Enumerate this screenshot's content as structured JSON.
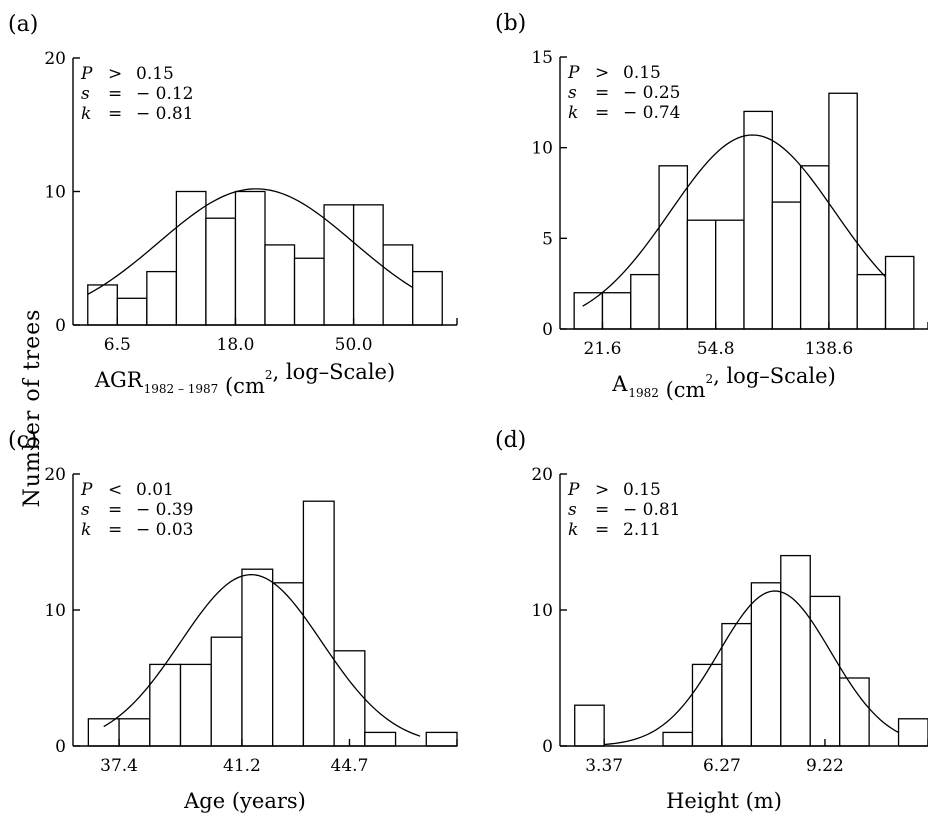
{
  "figure": {
    "ylabel": "Number of trees"
  },
  "chart_data": [
    {
      "type": "bar",
      "panel": "(a)",
      "xlabel_main": "AGR",
      "xlabel_sub": "1982 – 1987",
      "xlabel_rest": " (cm",
      "xlabel_sup": "2",
      "xlabel_tail": ", log–Scale)",
      "xlim": [
        0.0,
        13.0
      ],
      "ylim": [
        0,
        20
      ],
      "y_ticks": [
        0,
        10,
        20
      ],
      "x_ticks": [
        {
          "pos": 1.5,
          "label": "6.5"
        },
        {
          "pos": 5.5,
          "label": "18.0"
        },
        {
          "pos": 9.5,
          "label": "50.0"
        }
      ],
      "bins": [
        0.5,
        1.5,
        2.5,
        3.5,
        4.5,
        5.5,
        6.5,
        7.5,
        8.5,
        9.5,
        10.5,
        11.5
      ],
      "values": [
        3,
        2,
        4,
        10,
        8,
        10,
        6,
        5,
        9,
        9,
        6,
        4
      ],
      "bin_width": 1.0,
      "fit_curve": {
        "type": "normal",
        "mean": 6.2,
        "sd": 3.3,
        "peak": 10.2,
        "x_range": [
          0.5,
          11.5
        ]
      },
      "stats": {
        "p_sym": "P",
        "p_op": ">",
        "p_val": "0.15",
        "s_sym": "s",
        "s_eq": "=",
        "s_val": "− 0.12",
        "k_sym": "k",
        "k_eq": "=",
        "k_val": "− 0.81"
      }
    },
    {
      "type": "bar",
      "panel": "(b)",
      "xlabel_main": "A",
      "xlabel_sub": "1982",
      "xlabel_rest": " (cm",
      "xlabel_sup": "2",
      "xlabel_tail": ", log–Scale)",
      "xlim": [
        0.0,
        13.0
      ],
      "ylim": [
        0,
        15
      ],
      "y_ticks": [
        0,
        5,
        10,
        15
      ],
      "x_ticks": [
        {
          "pos": 1.5,
          "label": "21.6"
        },
        {
          "pos": 5.5,
          "label": "54.8"
        },
        {
          "pos": 9.5,
          "label": "138.6"
        }
      ],
      "bins": [
        0.5,
        1.5,
        2.5,
        3.5,
        4.5,
        5.5,
        6.5,
        7.5,
        8.5,
        9.5,
        10.5,
        11.5
      ],
      "values": [
        2,
        2,
        3,
        9,
        6,
        6,
        12,
        7,
        9,
        13,
        3,
        4
      ],
      "bin_width": 1.0,
      "fit_curve": {
        "type": "normal",
        "mean": 6.8,
        "sd": 2.9,
        "peak": 10.7,
        "x_range": [
          0.8,
          11.5
        ]
      },
      "stats": {
        "p_sym": "P",
        "p_op": ">",
        "p_val": "0.15",
        "s_sym": "s",
        "s_eq": "=",
        "s_val": "− 0.25",
        "k_sym": "k",
        "k_eq": "=",
        "k_val": "− 0.74"
      }
    },
    {
      "type": "bar",
      "panel": "(c)",
      "xlabel_main": "Age (years)",
      "xlim": [
        0.0,
        12.5
      ],
      "ylim": [
        0,
        20
      ],
      "y_ticks": [
        0,
        10,
        20
      ],
      "x_ticks": [
        {
          "pos": 1.5,
          "label": "37.4"
        },
        {
          "pos": 5.5,
          "label": "41.2"
        },
        {
          "pos": 9.0,
          "label": "44.7"
        }
      ],
      "bins": [
        0.5,
        1.5,
        2.5,
        3.5,
        4.5,
        5.5,
        6.5,
        7.5,
        8.5,
        9.5,
        10.5,
        11.5
      ],
      "values": [
        2,
        2,
        6,
        6,
        8,
        13,
        12,
        18,
        7,
        1,
        0,
        1
      ],
      "bin_width": 1.0,
      "fit_curve": {
        "type": "normal",
        "mean": 5.8,
        "sd": 2.3,
        "peak": 12.6,
        "x_range": [
          1.0,
          11.3
        ]
      },
      "stats": {
        "p_sym": "P",
        "p_op": "<",
        "p_val": "0.01",
        "s_sym": "s",
        "s_eq": "=",
        "s_val": "− 0.39",
        "k_sym": "k",
        "k_eq": "=",
        "k_val": "− 0.03"
      }
    },
    {
      "type": "bar",
      "panel": "(d)",
      "xlabel_main": "Height (m)",
      "xlim": [
        0.0,
        12.5
      ],
      "ylim": [
        0,
        20
      ],
      "y_ticks": [
        0,
        10,
        20
      ],
      "x_ticks": [
        {
          "pos": 1.5,
          "label": "3.37"
        },
        {
          "pos": 5.5,
          "label": "6.27"
        },
        {
          "pos": 9.0,
          "label": "9.22"
        }
      ],
      "bins": [
        0.5,
        1.5,
        2.5,
        3.5,
        4.5,
        5.5,
        6.5,
        7.5,
        8.5,
        9.5,
        10.5,
        11.5
      ],
      "values": [
        3,
        0,
        0,
        1,
        6,
        9,
        12,
        14,
        11,
        5,
        0,
        2
      ],
      "bin_width": 1.0,
      "fit_curve": {
        "type": "normal",
        "mean": 7.3,
        "sd": 1.9,
        "peak": 11.4,
        "x_range": [
          1.5,
          11.5
        ]
      },
      "stats": {
        "p_sym": "P",
        "p_op": ">",
        "p_val": "0.15",
        "s_sym": "s",
        "s_eq": "=",
        "s_val": "− 0.81",
        "k_sym": "k",
        "k_eq": "=",
        "k_val": "2.11"
      }
    }
  ]
}
